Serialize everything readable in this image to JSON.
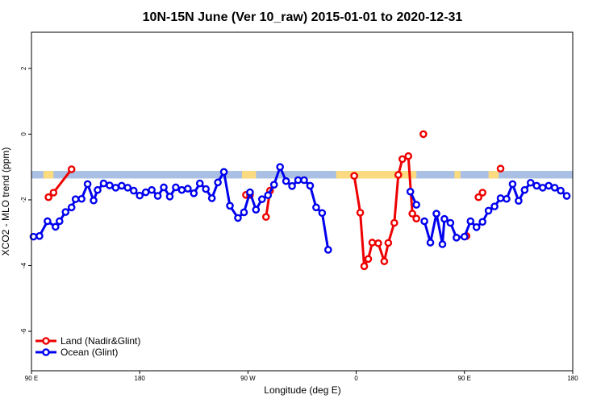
{
  "chart_data": {
    "type": "line",
    "title": "10N-15N June (Ver 10_raw)   2015-01-01 to 2020-12-31",
    "xlabel": "Longitude (deg E)",
    "ylabel": "XCO2 - MLO trend (ppm)",
    "xlim": [
      90,
      360
    ],
    "ylim": [
      -7.2,
      3.1
    ],
    "x_ticks": [
      {
        "value": 90,
        "label": "90 E"
      },
      {
        "value": 144,
        "label": "180"
      },
      {
        "value": 198,
        "label": "90 W"
      },
      {
        "value": 252,
        "label": "0"
      },
      {
        "value": 306,
        "label": "90 E"
      },
      {
        "value": 360,
        "label": "180"
      }
    ],
    "y_ticks": [
      {
        "value": 2,
        "label": "2"
      },
      {
        "value": 0,
        "label": "0"
      },
      {
        "value": -2,
        "label": "-2"
      },
      {
        "value": -4,
        "label": "-4"
      },
      {
        "value": -6,
        "label": "-6"
      }
    ],
    "grid": false,
    "legend_position": "bottom-left",
    "band": {
      "y_top": -1.12,
      "y_bottom": -1.35,
      "color": "#a9bfe3",
      "land_color": "#fcdb80",
      "land_segments": [
        [
          96,
          101
        ],
        [
          195,
          202
        ],
        [
          242,
          282
        ],
        [
          301,
          304
        ],
        [
          318,
          323
        ]
      ]
    },
    "series": [
      {
        "name": "Land (Nadir&Glint)",
        "color": "#ee0000",
        "segments": [
          [
            [
              98.5,
              -1.92
            ],
            [
              101,
              -1.78
            ],
            [
              110,
              -1.07
            ]
          ],
          [
            [
              197,
              -1.85
            ],
            [
              199,
              -1.85
            ]
          ],
          [
            [
              207,
              -2.52
            ],
            [
              209,
              -1.72
            ]
          ],
          [
            [
              285.5,
              0.0
            ]
          ],
          [
            [
              251,
              -1.27
            ],
            [
              254,
              -2.39
            ],
            [
              256,
              -4.02
            ],
            [
              258,
              -3.8
            ],
            [
              260,
              -3.3
            ],
            [
              263,
              -3.32
            ],
            [
              266,
              -3.87
            ],
            [
              268,
              -3.31
            ],
            [
              271,
              -2.7
            ],
            [
              273,
              -1.24
            ],
            [
              275,
              -0.76
            ],
            [
              278,
              -0.67
            ],
            [
              280,
              -2.42
            ],
            [
              282,
              -2.57
            ]
          ],
          [
            [
              307,
              -3.1
            ]
          ],
          [
            [
              313,
              -1.92
            ],
            [
              315,
              -1.78
            ]
          ],
          [
            [
              324,
              -1.05
            ]
          ]
        ]
      },
      {
        "name": "Ocean (Glint)",
        "color": "#0000ee",
        "segments": [
          [
            [
              91,
              -3.12
            ],
            [
              94,
              -3.1
            ],
            [
              98,
              -2.65
            ],
            [
              102,
              -2.82
            ],
            [
              104,
              -2.65
            ],
            [
              107,
              -2.37
            ],
            [
              110,
              -2.23
            ],
            [
              112,
              -1.98
            ],
            [
              115,
              -1.97
            ],
            [
              118,
              -1.52
            ],
            [
              121,
              -2.02
            ],
            [
              123,
              -1.7
            ],
            [
              126,
              -1.5
            ],
            [
              129,
              -1.56
            ],
            [
              132,
              -1.63
            ],
            [
              135,
              -1.57
            ],
            [
              138,
              -1.63
            ],
            [
              141,
              -1.72
            ],
            [
              144,
              -1.87
            ],
            [
              147,
              -1.77
            ],
            [
              150,
              -1.7
            ],
            [
              153,
              -1.88
            ],
            [
              156,
              -1.62
            ],
            [
              159,
              -1.9
            ],
            [
              162,
              -1.62
            ],
            [
              165,
              -1.7
            ],
            [
              168,
              -1.66
            ],
            [
              171,
              -1.8
            ],
            [
              174,
              -1.5
            ],
            [
              177,
              -1.67
            ],
            [
              180,
              -1.95
            ],
            [
              183,
              -1.47
            ],
            [
              186,
              -1.15
            ],
            [
              189,
              -2.18
            ],
            [
              193,
              -2.55
            ],
            [
              196,
              -2.38
            ],
            [
              199,
              -1.77
            ],
            [
              202,
              -2.3
            ],
            [
              205,
              -1.98
            ],
            [
              208,
              -1.86
            ],
            [
              211,
              -1.54
            ],
            [
              214,
              -1.0
            ],
            [
              217,
              -1.43
            ],
            [
              220,
              -1.58
            ],
            [
              223,
              -1.4
            ],
            [
              226,
              -1.4
            ],
            [
              229,
              -1.57
            ],
            [
              232,
              -2.23
            ],
            [
              235,
              -2.4
            ],
            [
              238,
              -3.52
            ]
          ],
          [
            [
              279,
              -1.75
            ],
            [
              282,
              -2.15
            ]
          ],
          [
            [
              286,
              -2.65
            ],
            [
              289,
              -3.3
            ],
            [
              292,
              -2.42
            ],
            [
              295,
              -3.35
            ],
            [
              296,
              -2.58
            ],
            [
              299,
              -2.7
            ],
            [
              302,
              -3.15
            ],
            [
              306,
              -3.12
            ],
            [
              309,
              -2.65
            ],
            [
              312,
              -2.83
            ],
            [
              315,
              -2.67
            ],
            [
              318,
              -2.33
            ],
            [
              321,
              -2.2
            ],
            [
              324,
              -1.95
            ],
            [
              327,
              -1.97
            ],
            [
              330,
              -1.52
            ],
            [
              333,
              -2.03
            ],
            [
              336,
              -1.7
            ],
            [
              339,
              -1.48
            ],
            [
              342,
              -1.57
            ],
            [
              345,
              -1.63
            ],
            [
              348,
              -1.57
            ],
            [
              351,
              -1.63
            ],
            [
              354,
              -1.72
            ],
            [
              357,
              -1.88
            ]
          ]
        ]
      }
    ]
  }
}
